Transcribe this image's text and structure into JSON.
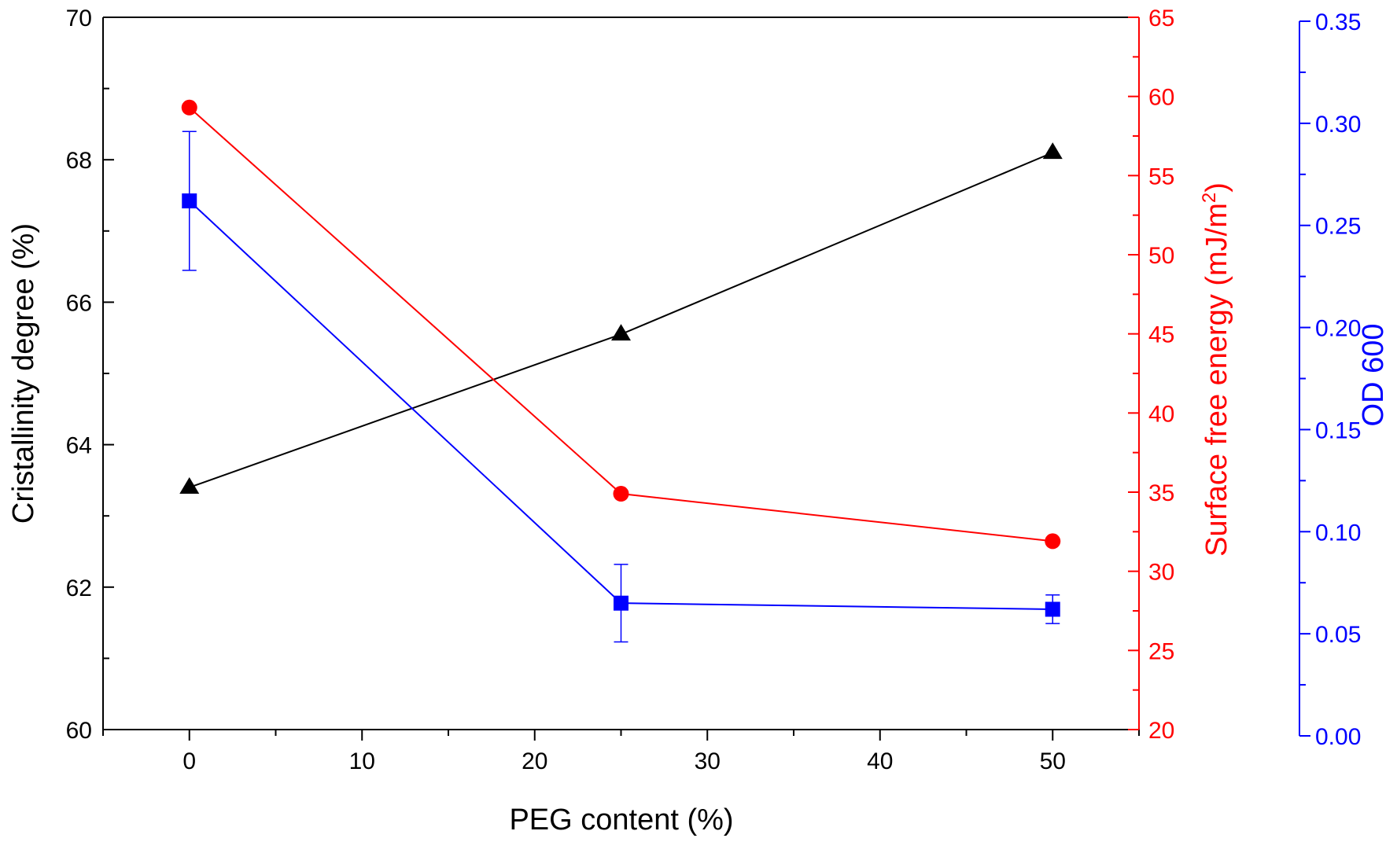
{
  "chart_data": {
    "type": "line",
    "xlabel": "PEG content (%)",
    "xlim": [
      -5,
      55
    ],
    "x_ticks": [
      0,
      10,
      20,
      30,
      40,
      50
    ],
    "axes": {
      "left": {
        "label": "Cristallinity degree (%)",
        "lim": [
          60,
          70
        ],
        "ticks": [
          60,
          62,
          64,
          66,
          68,
          70
        ],
        "color": "#000000"
      },
      "right": {
        "label_main": "Surface free energy (mJ/m",
        "label_sup": "2",
        "label_end": ")",
        "lim": [
          20,
          65
        ],
        "ticks": [
          20,
          25,
          30,
          35,
          40,
          45,
          50,
          55,
          60,
          65
        ],
        "color": "#ff0000"
      },
      "right2": {
        "label": "OD 600",
        "lim": [
          0,
          0.35
        ],
        "ticks": [
          "0.00",
          "0.05",
          "0.10",
          "0.15",
          "0.20",
          "0.25",
          "0.30",
          "0.35"
        ],
        "color": "#0000ff"
      }
    },
    "series": [
      {
        "name": "Cristallinity degree",
        "axis": "left",
        "marker": "triangle",
        "color": "#000000",
        "x": [
          0,
          25,
          50
        ],
        "y": [
          63.4,
          65.55,
          68.1
        ]
      },
      {
        "name": "Surface free energy",
        "axis": "right",
        "marker": "circle",
        "color": "#ff0000",
        "x": [
          0,
          25,
          50
        ],
        "y": [
          59.3,
          34.9,
          31.9
        ]
      },
      {
        "name": "OD 600",
        "axis": "right2",
        "marker": "square",
        "color": "#0000ff",
        "x": [
          0,
          25,
          50
        ],
        "y": [
          0.262,
          0.065,
          0.062
        ],
        "err": [
          0.034,
          0.019,
          0.007
        ]
      }
    ]
  }
}
